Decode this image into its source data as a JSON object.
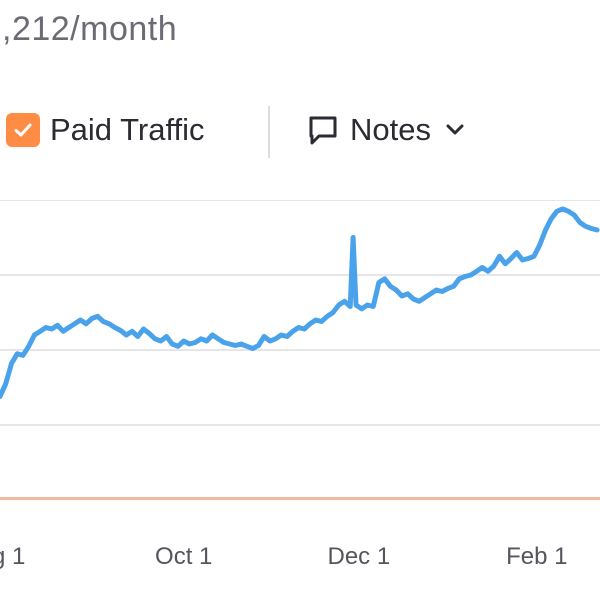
{
  "summary": {
    "text": ",212/month"
  },
  "legend": {
    "paid_traffic_label": "Paid Traffic",
    "paid_checked": true,
    "notes_label": "Notes"
  },
  "icons": {
    "paid_checkbox": "check-icon",
    "notes": "speech-bubble-icon",
    "notes_dropdown": "chevron-down-icon"
  },
  "colors": {
    "organic_line": "#4aa3ea",
    "paid_line": "#f2b9a0",
    "paid_checkbox": "#ff8c45",
    "grid": "#e6e6ea"
  },
  "chart_data": {
    "type": "line",
    "x_axis": {
      "type": "date",
      "range": [
        "2023-07-29",
        "2024-02-23"
      ],
      "ticks": [
        {
          "date": "2023-08-01",
          "label": "g 1"
        },
        {
          "date": "2023-10-01",
          "label": "Oct 1"
        },
        {
          "date": "2023-12-01",
          "label": "Dec 1"
        },
        {
          "date": "2024-02-01",
          "label": "Feb 1"
        }
      ]
    },
    "y_axis": {
      "range": [
        0,
        4
      ],
      "gridlines": [
        1,
        2,
        3,
        4
      ],
      "tick_labels_visible": false
    },
    "grid": true,
    "series": [
      {
        "key": "organic",
        "points": [
          [
            "2023-07-29",
            1.38
          ],
          [
            "2023-07-31",
            1.55
          ],
          [
            "2023-08-02",
            1.82
          ],
          [
            "2023-08-04",
            1.95
          ],
          [
            "2023-08-06",
            1.93
          ],
          [
            "2023-08-08",
            2.05
          ],
          [
            "2023-08-10",
            2.2
          ],
          [
            "2023-08-12",
            2.25
          ],
          [
            "2023-08-14",
            2.3
          ],
          [
            "2023-08-16",
            2.28
          ],
          [
            "2023-08-18",
            2.33
          ],
          [
            "2023-08-20",
            2.25
          ],
          [
            "2023-08-22",
            2.3
          ],
          [
            "2023-08-24",
            2.35
          ],
          [
            "2023-08-26",
            2.4
          ],
          [
            "2023-08-28",
            2.35
          ],
          [
            "2023-08-30",
            2.42
          ],
          [
            "2023-09-01",
            2.45
          ],
          [
            "2023-09-03",
            2.38
          ],
          [
            "2023-09-05",
            2.35
          ],
          [
            "2023-09-07",
            2.3
          ],
          [
            "2023-09-09",
            2.26
          ],
          [
            "2023-09-11",
            2.2
          ],
          [
            "2023-09-13",
            2.25
          ],
          [
            "2023-09-15",
            2.18
          ],
          [
            "2023-09-17",
            2.28
          ],
          [
            "2023-09-19",
            2.22
          ],
          [
            "2023-09-21",
            2.15
          ],
          [
            "2023-09-23",
            2.12
          ],
          [
            "2023-09-25",
            2.18
          ],
          [
            "2023-09-27",
            2.08
          ],
          [
            "2023-09-29",
            2.05
          ],
          [
            "2023-10-01",
            2.12
          ],
          [
            "2023-10-03",
            2.08
          ],
          [
            "2023-10-05",
            2.1
          ],
          [
            "2023-10-07",
            2.15
          ],
          [
            "2023-10-09",
            2.12
          ],
          [
            "2023-10-11",
            2.2
          ],
          [
            "2023-10-13",
            2.15
          ],
          [
            "2023-10-15",
            2.1
          ],
          [
            "2023-10-17",
            2.08
          ],
          [
            "2023-10-19",
            2.06
          ],
          [
            "2023-10-21",
            2.08
          ],
          [
            "2023-10-23",
            2.05
          ],
          [
            "2023-10-25",
            2.02
          ],
          [
            "2023-10-27",
            2.06
          ],
          [
            "2023-10-29",
            2.18
          ],
          [
            "2023-10-31",
            2.12
          ],
          [
            "2023-11-02",
            2.15
          ],
          [
            "2023-11-04",
            2.2
          ],
          [
            "2023-11-06",
            2.18
          ],
          [
            "2023-11-08",
            2.25
          ],
          [
            "2023-11-10",
            2.3
          ],
          [
            "2023-11-12",
            2.28
          ],
          [
            "2023-11-14",
            2.35
          ],
          [
            "2023-11-16",
            2.4
          ],
          [
            "2023-11-18",
            2.38
          ],
          [
            "2023-11-20",
            2.45
          ],
          [
            "2023-11-22",
            2.5
          ],
          [
            "2023-11-24",
            2.6
          ],
          [
            "2023-11-26",
            2.65
          ],
          [
            "2023-11-28",
            2.58
          ],
          [
            "2023-11-29",
            3.5
          ],
          [
            "2023-11-30",
            2.6
          ],
          [
            "2023-12-02",
            2.55
          ],
          [
            "2023-12-04",
            2.6
          ],
          [
            "2023-12-06",
            2.58
          ],
          [
            "2023-12-08",
            2.9
          ],
          [
            "2023-12-10",
            2.95
          ],
          [
            "2023-12-12",
            2.85
          ],
          [
            "2023-12-14",
            2.8
          ],
          [
            "2023-12-16",
            2.72
          ],
          [
            "2023-12-18",
            2.75
          ],
          [
            "2023-12-20",
            2.68
          ],
          [
            "2023-12-22",
            2.65
          ],
          [
            "2023-12-24",
            2.7
          ],
          [
            "2023-12-26",
            2.75
          ],
          [
            "2023-12-28",
            2.8
          ],
          [
            "2023-12-30",
            2.78
          ],
          [
            "2024-01-01",
            2.82
          ],
          [
            "2024-01-03",
            2.85
          ],
          [
            "2024-01-05",
            2.95
          ],
          [
            "2024-01-07",
            2.98
          ],
          [
            "2024-01-09",
            3.0
          ],
          [
            "2024-01-11",
            3.05
          ],
          [
            "2024-01-13",
            3.1
          ],
          [
            "2024-01-15",
            3.05
          ],
          [
            "2024-01-17",
            3.12
          ],
          [
            "2024-01-19",
            3.25
          ],
          [
            "2024-01-21",
            3.15
          ],
          [
            "2024-01-23",
            3.22
          ],
          [
            "2024-01-25",
            3.3
          ],
          [
            "2024-01-27",
            3.2
          ],
          [
            "2024-01-29",
            3.22
          ],
          [
            "2024-01-31",
            3.25
          ],
          [
            "2024-02-02",
            3.4
          ],
          [
            "2024-02-04",
            3.6
          ],
          [
            "2024-02-06",
            3.75
          ],
          [
            "2024-02-08",
            3.85
          ],
          [
            "2024-02-10",
            3.88
          ],
          [
            "2024-02-12",
            3.85
          ],
          [
            "2024-02-14",
            3.8
          ],
          [
            "2024-02-16",
            3.7
          ],
          [
            "2024-02-18",
            3.65
          ],
          [
            "2024-02-20",
            3.62
          ],
          [
            "2024-02-22",
            3.6
          ]
        ]
      },
      {
        "key": "paid",
        "points": [
          [
            "2023-07-29",
            0.02
          ],
          [
            "2024-02-23",
            0.02
          ]
        ]
      }
    ]
  }
}
